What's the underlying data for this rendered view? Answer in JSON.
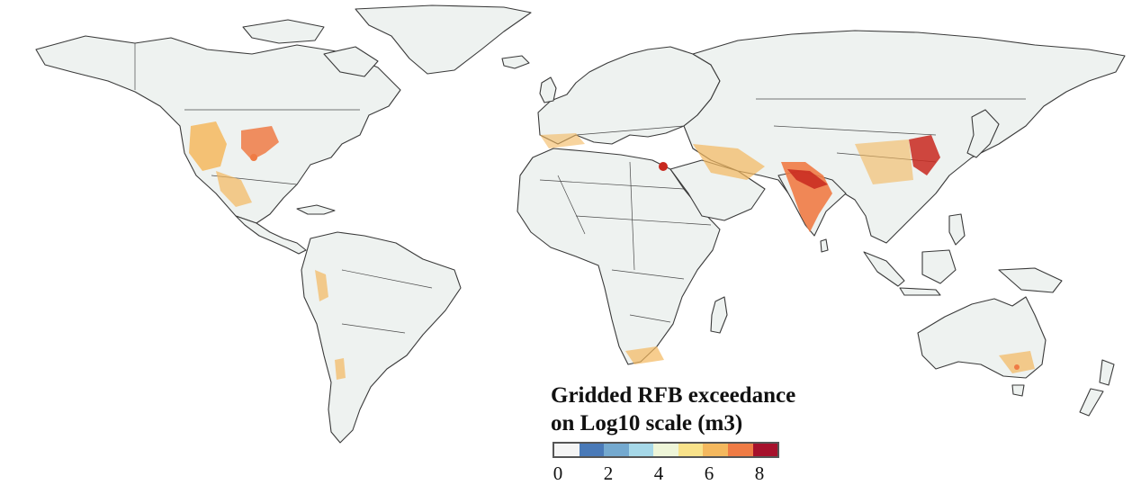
{
  "legend": {
    "title_line1": "Gridded RFB exceedance",
    "title_line2": "on Log10 scale (m3)",
    "colors": [
      "#f4f4f4",
      "#4a7ab8",
      "#74a9cf",
      "#a6d8e8",
      "#eef5d8",
      "#f8e28a",
      "#f4b85e",
      "#ef7b45",
      "#a6112c"
    ],
    "ticks": [
      "0",
      "2",
      "4",
      "6",
      "8"
    ]
  },
  "map": {
    "land_color": "#eef2f0",
    "hotspot_colors": {
      "low": "#f4b85e",
      "mid": "#ef7b45",
      "high": "#c8281e"
    },
    "regions": [
      "north-america",
      "greenland",
      "south-america",
      "europe",
      "africa",
      "asia",
      "australia",
      "new-zealand",
      "madagascar",
      "japan",
      "uk",
      "iceland",
      "sri-lanka",
      "indonesia",
      "philippines"
    ],
    "hotspots": [
      {
        "name": "western-us",
        "level": "mid"
      },
      {
        "name": "central-us",
        "level": "mid"
      },
      {
        "name": "mexico",
        "level": "low"
      },
      {
        "name": "nile-delta",
        "level": "high"
      },
      {
        "name": "middle-east",
        "level": "low"
      },
      {
        "name": "pakistan-india",
        "level": "high"
      },
      {
        "name": "north-china-plain",
        "level": "high"
      },
      {
        "name": "south-america-west",
        "level": "low"
      },
      {
        "name": "southern-africa",
        "level": "low"
      },
      {
        "name": "southeast-australia",
        "level": "low"
      }
    ]
  }
}
